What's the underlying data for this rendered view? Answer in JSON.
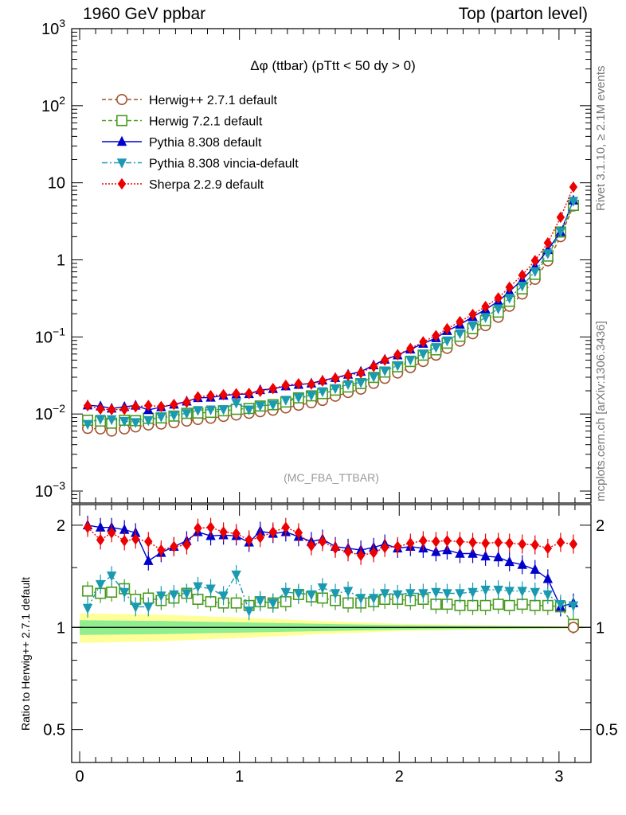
{
  "header": {
    "left": "1960 GeV ppbar",
    "right": "Top (parton level)"
  },
  "side_text": {
    "rivet": "Rivet 3.1.10, ≥ 2.1M events",
    "mcplots": "mcplots.cern.ch [arXiv:1306.3436]"
  },
  "chart_data": [
    {
      "type": "line",
      "title": "Δφ (ttbar) (pTtt < 50 dy > 0)",
      "watermark": "(MC_FBA_TTBAR)",
      "xlabel": "",
      "ylabel": "",
      "xlim": [
        -0.05,
        3.2
      ],
      "ylim": [
        0.0007,
        1000
      ],
      "yscale": "log",
      "legend_position": "top-left",
      "y_tick_labels": [
        "10^-3",
        "10^-2",
        "10^-1",
        "1",
        "10",
        "10^2",
        "10^3"
      ],
      "x": [
        0.05,
        0.13,
        0.2,
        0.28,
        0.35,
        0.43,
        0.51,
        0.59,
        0.67,
        0.74,
        0.82,
        0.9,
        0.98,
        1.06,
        1.13,
        1.21,
        1.29,
        1.37,
        1.45,
        1.52,
        1.6,
        1.68,
        1.76,
        1.84,
        1.91,
        1.99,
        2.07,
        2.15,
        2.23,
        2.3,
        2.38,
        2.46,
        2.54,
        2.62,
        2.69,
        2.77,
        2.85,
        2.93,
        3.01,
        3.09
      ],
      "series": [
        {
          "name": "Herwig++ 2.7.1 default",
          "color": "#a0522d",
          "marker": "open-circle",
          "dash": "dashed",
          "values": [
            0.0065,
            0.0064,
            0.006,
            0.0064,
            0.0068,
            0.0072,
            0.0074,
            0.0077,
            0.0081,
            0.0085,
            0.0088,
            0.0093,
            0.0097,
            0.0102,
            0.0107,
            0.0112,
            0.012,
            0.013,
            0.014,
            0.015,
            0.017,
            0.019,
            0.021,
            0.025,
            0.029,
            0.034,
            0.04,
            0.048,
            0.058,
            0.071,
            0.088,
            0.11,
            0.14,
            0.18,
            0.25,
            0.36,
            0.56,
            0.97,
            2.0,
            5.0
          ]
        },
        {
          "name": "Herwig 7.2.1 default",
          "color": "#4a9a1f",
          "marker": "open-square",
          "dash": "dashed",
          "values": [
            0.0083,
            0.0081,
            0.0076,
            0.0083,
            0.0082,
            0.0088,
            0.0089,
            0.0094,
            0.0102,
            0.0103,
            0.0105,
            0.011,
            0.0115,
            0.0118,
            0.0127,
            0.0132,
            0.0143,
            0.0162,
            0.0172,
            0.0184,
            0.0204,
            0.0224,
            0.0248,
            0.0298,
            0.035,
            0.041,
            0.048,
            0.058,
            0.068,
            0.083,
            0.102,
            0.128,
            0.163,
            0.21,
            0.29,
            0.42,
            0.65,
            1.12,
            2.3,
            5.1
          ]
        },
        {
          "name": "Pythia 8.308 default",
          "color": "#0000cc",
          "marker": "filled-triangle-up",
          "dash": "solid",
          "values": [
            0.013,
            0.0126,
            0.0118,
            0.0124,
            0.0129,
            0.0113,
            0.0123,
            0.0133,
            0.0146,
            0.0162,
            0.0164,
            0.0174,
            0.018,
            0.0182,
            0.0205,
            0.0212,
            0.023,
            0.024,
            0.025,
            0.0273,
            0.0295,
            0.0325,
            0.0355,
            0.043,
            0.051,
            0.058,
            0.069,
            0.082,
            0.097,
            0.12,
            0.145,
            0.182,
            0.227,
            0.29,
            0.39,
            0.55,
            0.83,
            1.35,
            2.3,
            5.9
          ]
        },
        {
          "name": "Pythia 8.308 vincia-default",
          "color": "#1a9ab0",
          "marker": "filled-triangle-down",
          "dash": "dashdot",
          "values": [
            0.0074,
            0.0086,
            0.0085,
            0.0081,
            0.0078,
            0.0083,
            0.0092,
            0.0096,
            0.0102,
            0.0112,
            0.0114,
            0.0115,
            0.0139,
            0.0114,
            0.0128,
            0.0132,
            0.0152,
            0.0164,
            0.0175,
            0.0196,
            0.0215,
            0.0243,
            0.0257,
            0.0305,
            0.0365,
            0.0425,
            0.0505,
            0.0605,
            0.0735,
            0.0895,
            0.111,
            0.14,
            0.18,
            0.233,
            0.32,
            0.46,
            0.71,
            1.21,
            2.34,
            5.8
          ]
        },
        {
          "name": "Sherpa 2.2.9 default",
          "color": "#ee0000",
          "marker": "filled-diamond",
          "dash": "dotted",
          "values": [
            0.0128,
            0.0116,
            0.0114,
            0.0115,
            0.0124,
            0.0129,
            0.0125,
            0.0133,
            0.0142,
            0.0167,
            0.0173,
            0.0178,
            0.0183,
            0.0185,
            0.0197,
            0.0214,
            0.0236,
            0.0247,
            0.0244,
            0.0268,
            0.0291,
            0.0318,
            0.0342,
            0.0414,
            0.0499,
            0.0588,
            0.0709,
            0.0864,
            0.104,
            0.128,
            0.158,
            0.196,
            0.248,
            0.321,
            0.442,
            0.633,
            0.979,
            1.66,
            3.57,
            8.8
          ]
        }
      ]
    },
    {
      "type": "line",
      "title": "",
      "xlabel": "",
      "ylabel": "Ratio to Herwig++ 2.7.1 default",
      "xlim": [
        -0.05,
        3.2
      ],
      "ylim": [
        0.4,
        2.3
      ],
      "yscale": "log",
      "x_ticks": [
        0,
        1,
        2,
        3
      ],
      "y_ticks": [
        0.5,
        1,
        2
      ],
      "reference_line": 1,
      "uncertainty_bands": {
        "inner_color": "#90ee90",
        "outer_color": "#ffff99",
        "x": [
          0.0,
          0.5,
          1.0,
          1.5,
          2.0,
          2.5,
          3.0,
          3.15
        ],
        "inner_half_width": [
          0.05,
          0.045,
          0.035,
          0.025,
          0.015,
          0.01,
          0.006,
          0.005
        ],
        "outer_half_width": [
          0.1,
          0.09,
          0.07,
          0.045,
          0.025,
          0.015,
          0.008,
          0.006
        ]
      },
      "series": [
        {
          "name": "Herwig++ 2.7.1 default",
          "color": "#a0522d",
          "values": [
            1,
            1,
            1,
            1,
            1,
            1,
            1,
            1,
            1,
            1,
            1,
            1,
            1,
            1,
            1,
            1,
            1,
            1,
            1,
            1,
            1,
            1,
            1,
            1,
            1,
            1,
            1,
            1,
            1,
            1,
            1,
            1,
            1,
            1,
            1,
            1,
            1,
            1,
            1,
            1
          ]
        },
        {
          "name": "Herwig 7.2.1 default",
          "color": "#4a9a1f",
          "values": [
            1.28,
            1.26,
            1.27,
            1.3,
            1.21,
            1.22,
            1.2,
            1.22,
            1.26,
            1.21,
            1.19,
            1.18,
            1.18,
            1.16,
            1.19,
            1.18,
            1.19,
            1.25,
            1.23,
            1.22,
            1.2,
            1.18,
            1.18,
            1.19,
            1.21,
            1.21,
            1.2,
            1.21,
            1.17,
            1.17,
            1.16,
            1.16,
            1.16,
            1.17,
            1.16,
            1.17,
            1.16,
            1.16,
            1.15,
            1.02
          ]
        },
        {
          "name": "Pythia 8.308 default",
          "color": "#0000cc",
          "values": [
            2.0,
            1.97,
            1.97,
            1.94,
            1.9,
            1.57,
            1.66,
            1.73,
            1.8,
            1.91,
            1.86,
            1.87,
            1.86,
            1.78,
            1.92,
            1.89,
            1.91,
            1.85,
            1.79,
            1.82,
            1.73,
            1.71,
            1.69,
            1.72,
            1.76,
            1.71,
            1.73,
            1.71,
            1.67,
            1.69,
            1.65,
            1.65,
            1.62,
            1.61,
            1.56,
            1.53,
            1.48,
            1.39,
            1.15,
            1.18
          ]
        },
        {
          "name": "Pythia 8.308 vincia-default",
          "color": "#1a9ab0",
          "values": [
            1.14,
            1.34,
            1.42,
            1.27,
            1.15,
            1.15,
            1.24,
            1.25,
            1.26,
            1.32,
            1.3,
            1.24,
            1.43,
            1.12,
            1.2,
            1.18,
            1.27,
            1.26,
            1.25,
            1.31,
            1.26,
            1.28,
            1.22,
            1.22,
            1.26,
            1.25,
            1.26,
            1.26,
            1.27,
            1.26,
            1.26,
            1.27,
            1.29,
            1.29,
            1.28,
            1.28,
            1.27,
            1.25,
            1.17,
            1.16
          ]
        },
        {
          "name": "Sherpa 2.2.9 default",
          "color": "#ee0000",
          "values": [
            1.97,
            1.81,
            1.9,
            1.8,
            1.82,
            1.79,
            1.69,
            1.73,
            1.75,
            1.96,
            1.97,
            1.91,
            1.89,
            1.81,
            1.84,
            1.91,
            1.97,
            1.9,
            1.74,
            1.79,
            1.71,
            1.67,
            1.63,
            1.66,
            1.72,
            1.73,
            1.77,
            1.8,
            1.79,
            1.8,
            1.79,
            1.78,
            1.77,
            1.78,
            1.77,
            1.76,
            1.75,
            1.71,
            1.78,
            1.76
          ]
        }
      ]
    }
  ]
}
